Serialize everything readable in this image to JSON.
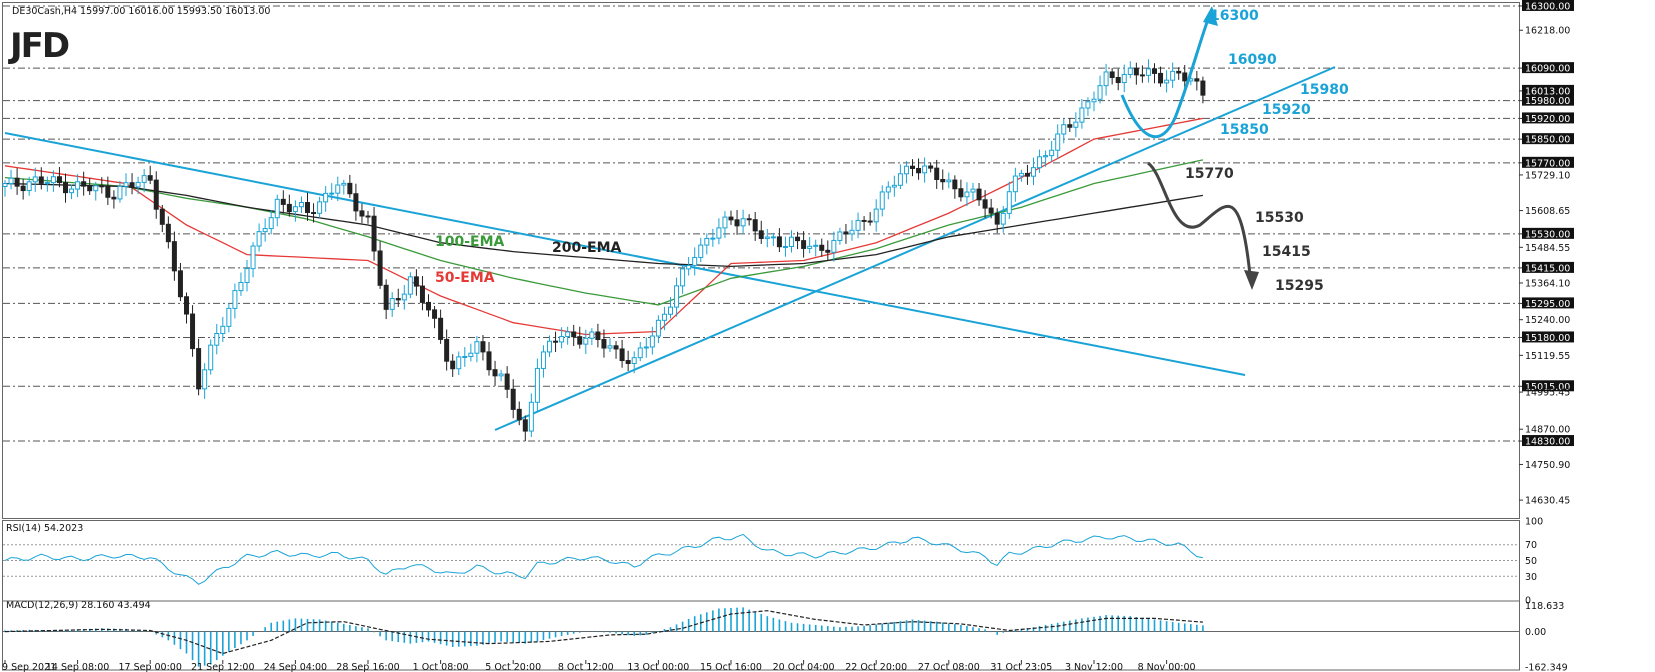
{
  "header": {
    "symbol_text": "DE30Cash,H4  15997.00 16016.00 15993.50 16013.00",
    "logo": "JFD",
    "rsi_label": "RSI(14) 54.2023",
    "macd_label": "MACD(12,26,9) 28.160 43.494"
  },
  "colors": {
    "candle": "#1aa3d6",
    "candle_bear": "#222222",
    "trendline": "#1aa3d6",
    "ema50": "#e53935",
    "ema100": "#3a9a3a",
    "ema200": "#222222",
    "arrow_up": "#1aa3d6",
    "arrow_down": "#444444",
    "grid": "#555555"
  },
  "chart_data": {
    "type": "candlestick",
    "symbol": "DE30Cash",
    "timeframe": "H4",
    "y_range": [
      14570,
      16310
    ],
    "x_range": [
      0,
      200
    ],
    "price_axis_ticks": [
      "16300.00",
      "16218.00",
      "16090.00",
      "16013.00",
      "15980.00",
      "15920.00",
      "15850.00",
      "15770.00",
      "15729.10",
      "15608.65",
      "15530.00",
      "15484.55",
      "15415.00",
      "15364.10",
      "15295.00",
      "15240.00",
      "15180.00",
      "15119.55",
      "15015.00",
      "14995.45",
      "14870.00",
      "14830.00",
      "14750.90",
      "14630.45"
    ],
    "price_axis_values": [
      16300,
      16218,
      16090,
      16013,
      15980,
      15920,
      15850,
      15770,
      15729.1,
      15608.65,
      15530,
      15484.55,
      15415,
      15364.1,
      15295,
      15240,
      15180,
      15119.55,
      15015,
      14995.45,
      14870,
      14830,
      14750.9,
      14630.45
    ],
    "highlighted_levels": [
      "16300.00",
      "16090.00",
      "16013.00",
      "15980.00",
      "15920.00",
      "15850.00",
      "15770.00",
      "15530.00",
      "15415.00",
      "15295.00",
      "15180.00",
      "15015.00",
      "14830.00"
    ],
    "dashed_levels": [
      16300,
      16090,
      15980,
      15920,
      15850,
      15770,
      15530,
      15415,
      15295,
      15180,
      15015,
      14830
    ],
    "x_labels": [
      "9 Sep 2021",
      "14 Sep 08:00",
      "17 Sep 00:00",
      "21 Sep 12:00",
      "24 Sep 04:00",
      "28 Sep 16:00",
      "1 Oct 08:00",
      "5 Oct 20:00",
      "8 Oct 12:00",
      "13 Oct 00:00",
      "15 Oct 16:00",
      "20 Oct 04:00",
      "22 Oct 20:00",
      "27 Oct 08:00",
      "31 Oct 23:05",
      "3 Nov 12:00",
      "8 Nov 00:00"
    ],
    "x_label_bars": [
      0,
      12,
      24,
      36,
      48,
      60,
      72,
      84,
      96,
      108,
      120,
      132,
      144,
      156,
      168,
      180,
      192
    ],
    "close_path": [
      [
        0,
        15690
      ],
      [
        5,
        15710
      ],
      [
        12,
        15690
      ],
      [
        18,
        15670
      ],
      [
        24,
        15720
      ],
      [
        27,
        15480
      ],
      [
        30,
        15250
      ],
      [
        32,
        15030
      ],
      [
        36,
        15230
      ],
      [
        40,
        15430
      ],
      [
        45,
        15640
      ],
      [
        50,
        15600
      ],
      [
        55,
        15700
      ],
      [
        60,
        15580
      ],
      [
        63,
        15260
      ],
      [
        67,
        15380
      ],
      [
        70,
        15270
      ],
      [
        74,
        15080
      ],
      [
        78,
        15150
      ],
      [
        82,
        15040
      ],
      [
        86,
        14850
      ],
      [
        88,
        15100
      ],
      [
        92,
        15190
      ],
      [
        96,
        15180
      ],
      [
        100,
        15150
      ],
      [
        104,
        15090
      ],
      [
        106,
        15160
      ],
      [
        110,
        15300
      ],
      [
        114,
        15470
      ],
      [
        118,
        15550
      ],
      [
        122,
        15590
      ],
      [
        126,
        15500
      ],
      [
        130,
        15510
      ],
      [
        134,
        15470
      ],
      [
        138,
        15520
      ],
      [
        142,
        15570
      ],
      [
        146,
        15680
      ],
      [
        150,
        15770
      ],
      [
        154,
        15720
      ],
      [
        158,
        15680
      ],
      [
        162,
        15630
      ],
      [
        164,
        15560
      ],
      [
        166,
        15680
      ],
      [
        170,
        15760
      ],
      [
        174,
        15850
      ],
      [
        178,
        15950
      ],
      [
        182,
        16050
      ],
      [
        186,
        16080
      ],
      [
        190,
        16060
      ],
      [
        194,
        16070
      ],
      [
        198,
        16013
      ]
    ],
    "series": [
      {
        "name": "50-EMA",
        "points": [
          [
            0,
            15760
          ],
          [
            20,
            15700
          ],
          [
            30,
            15560
          ],
          [
            40,
            15460
          ],
          [
            50,
            15450
          ],
          [
            60,
            15440
          ],
          [
            72,
            15320
          ],
          [
            84,
            15230
          ],
          [
            96,
            15190
          ],
          [
            108,
            15200
          ],
          [
            120,
            15430
          ],
          [
            132,
            15440
          ],
          [
            144,
            15500
          ],
          [
            156,
            15600
          ],
          [
            168,
            15720
          ],
          [
            180,
            15850
          ],
          [
            198,
            15920
          ]
        ]
      },
      {
        "name": "100-EMA",
        "points": [
          [
            0,
            15720
          ],
          [
            20,
            15690
          ],
          [
            30,
            15650
          ],
          [
            40,
            15620
          ],
          [
            50,
            15580
          ],
          [
            60,
            15520
          ],
          [
            72,
            15440
          ],
          [
            84,
            15380
          ],
          [
            96,
            15330
          ],
          [
            108,
            15290
          ],
          [
            120,
            15380
          ],
          [
            132,
            15420
          ],
          [
            144,
            15480
          ],
          [
            156,
            15560
          ],
          [
            168,
            15620
          ],
          [
            180,
            15700
          ],
          [
            198,
            15780
          ]
        ]
      },
      {
        "name": "200-EMA",
        "points": [
          [
            0,
            15700
          ],
          [
            20,
            15690
          ],
          [
            30,
            15660
          ],
          [
            40,
            15620
          ],
          [
            50,
            15590
          ],
          [
            60,
            15560
          ],
          [
            72,
            15500
          ],
          [
            84,
            15470
          ],
          [
            96,
            15450
          ],
          [
            108,
            15430
          ],
          [
            120,
            15420
          ],
          [
            132,
            15430
          ],
          [
            144,
            15460
          ],
          [
            156,
            15520
          ],
          [
            168,
            15560
          ],
          [
            180,
            15600
          ],
          [
            198,
            15660
          ]
        ]
      }
    ],
    "rsi": {
      "label": "RSI(14) 54.2023",
      "levels": [
        70,
        50,
        30
      ],
      "ticks": [
        "100",
        "70",
        "50",
        "30",
        "0"
      ],
      "range": [
        0,
        100
      ],
      "values": [
        [
          0,
          50
        ],
        [
          6,
          55
        ],
        [
          12,
          52
        ],
        [
          18,
          56
        ],
        [
          24,
          54
        ],
        [
          27,
          40
        ],
        [
          30,
          28
        ],
        [
          32,
          22
        ],
        [
          36,
          40
        ],
        [
          40,
          55
        ],
        [
          45,
          60
        ],
        [
          50,
          56
        ],
        [
          55,
          58
        ],
        [
          60,
          50
        ],
        [
          63,
          32
        ],
        [
          67,
          45
        ],
        [
          70,
          40
        ],
        [
          74,
          32
        ],
        [
          78,
          42
        ],
        [
          82,
          34
        ],
        [
          86,
          30
        ],
        [
          88,
          45
        ],
        [
          92,
          50
        ],
        [
          96,
          54
        ],
        [
          100,
          50
        ],
        [
          104,
          42
        ],
        [
          106,
          52
        ],
        [
          110,
          60
        ],
        [
          114,
          68
        ],
        [
          118,
          78
        ],
        [
          122,
          80
        ],
        [
          126,
          62
        ],
        [
          130,
          58
        ],
        [
          134,
          56
        ],
        [
          138,
          60
        ],
        [
          142,
          64
        ],
        [
          146,
          70
        ],
        [
          150,
          78
        ],
        [
          154,
          72
        ],
        [
          158,
          64
        ],
        [
          162,
          55
        ],
        [
          164,
          45
        ],
        [
          166,
          58
        ],
        [
          170,
          64
        ],
        [
          174,
          72
        ],
        [
          178,
          76
        ],
        [
          182,
          80
        ],
        [
          186,
          78
        ],
        [
          190,
          74
        ],
        [
          194,
          70
        ],
        [
          198,
          54
        ]
      ]
    },
    "macd": {
      "label": "MACD(12,26,9) 28.160 43.494",
      "ticks": [
        "118.633",
        "0.00",
        "-162.349"
      ],
      "range": [
        -175,
        130
      ],
      "histogram": [
        [
          0,
          5
        ],
        [
          4,
          8
        ],
        [
          8,
          6
        ],
        [
          12,
          10
        ],
        [
          16,
          15
        ],
        [
          20,
          12
        ],
        [
          24,
          0
        ],
        [
          27,
          -40
        ],
        [
          30,
          -100
        ],
        [
          32,
          -160
        ],
        [
          34,
          -150
        ],
        [
          36,
          -110
        ],
        [
          40,
          -40
        ],
        [
          44,
          40
        ],
        [
          48,
          60
        ],
        [
          52,
          55
        ],
        [
          56,
          35
        ],
        [
          60,
          15
        ],
        [
          63,
          -40
        ],
        [
          67,
          -55
        ],
        [
          70,
          -45
        ],
        [
          74,
          -70
        ],
        [
          78,
          -65
        ],
        [
          82,
          -45
        ],
        [
          86,
          -55
        ],
        [
          88,
          -45
        ],
        [
          92,
          -20
        ],
        [
          96,
          0
        ],
        [
          100,
          -5
        ],
        [
          104,
          -20
        ],
        [
          106,
          -15
        ],
        [
          110,
          20
        ],
        [
          114,
          70
        ],
        [
          118,
          105
        ],
        [
          122,
          110
        ],
        [
          126,
          70
        ],
        [
          130,
          40
        ],
        [
          134,
          30
        ],
        [
          138,
          20
        ],
        [
          142,
          25
        ],
        [
          146,
          40
        ],
        [
          150,
          55
        ],
        [
          154,
          45
        ],
        [
          158,
          30
        ],
        [
          162,
          10
        ],
        [
          164,
          -15
        ],
        [
          166,
          5
        ],
        [
          170,
          20
        ],
        [
          174,
          40
        ],
        [
          178,
          60
        ],
        [
          182,
          75
        ],
        [
          186,
          70
        ],
        [
          190,
          55
        ],
        [
          194,
          40
        ],
        [
          198,
          28
        ]
      ],
      "signal": [
        [
          0,
          0
        ],
        [
          8,
          5
        ],
        [
          16,
          10
        ],
        [
          24,
          5
        ],
        [
          30,
          -40
        ],
        [
          36,
          -100
        ],
        [
          44,
          -40
        ],
        [
          50,
          40
        ],
        [
          56,
          45
        ],
        [
          62,
          10
        ],
        [
          70,
          -35
        ],
        [
          80,
          -55
        ],
        [
          90,
          -45
        ],
        [
          100,
          -15
        ],
        [
          106,
          -12
        ],
        [
          112,
          15
        ],
        [
          120,
          80
        ],
        [
          126,
          95
        ],
        [
          134,
          55
        ],
        [
          142,
          30
        ],
        [
          150,
          45
        ],
        [
          158,
          35
        ],
        [
          166,
          5
        ],
        [
          174,
          25
        ],
        [
          182,
          60
        ],
        [
          190,
          60
        ],
        [
          198,
          43
        ]
      ]
    },
    "annotations": {
      "up_scenario": [
        "16300",
        "16090",
        "15980",
        "15920",
        "15850"
      ],
      "down_scenario": [
        "15770",
        "15530",
        "15415",
        "15295"
      ],
      "ema_labels": [
        "100-EMA",
        "200-EMA",
        "50-EMA"
      ]
    },
    "grid": false,
    "legend": "none"
  }
}
